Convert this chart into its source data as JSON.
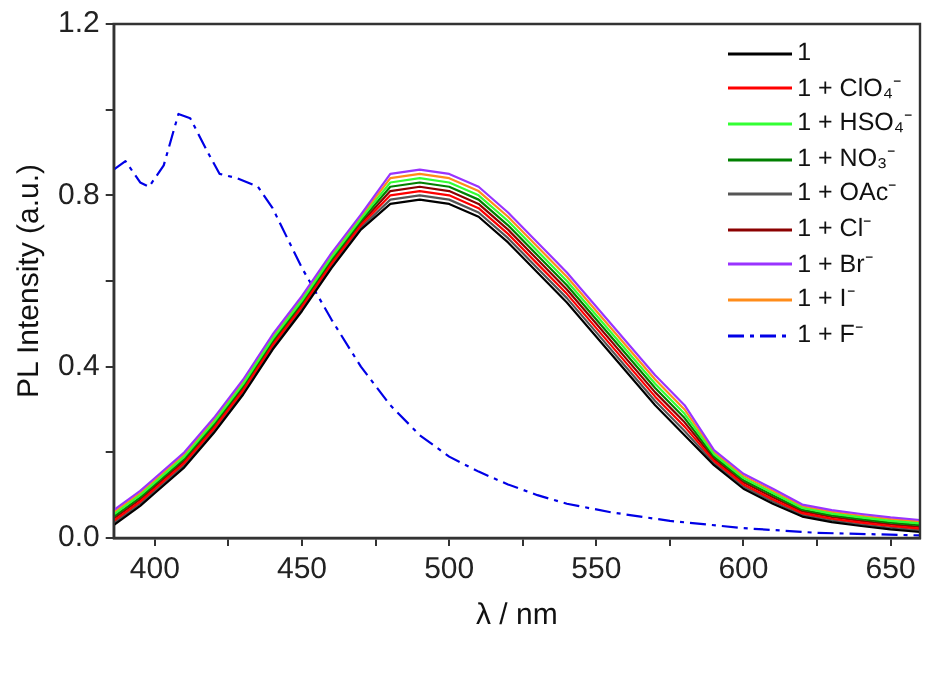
{
  "chart_data": {
    "type": "line",
    "xlabel": "λ / nm",
    "ylabel": "PL Intensity (a.u.)",
    "xlim": [
      386,
      660
    ],
    "xticks": [
      400,
      {
        "value": 425,
        "label": null
      },
      450,
      {
        "value": 475,
        "label": null
      },
      500,
      {
        "value": 525,
        "label": null
      },
      550,
      {
        "value": 575,
        "label": null
      },
      600,
      {
        "value": 625,
        "label": null
      },
      650
    ],
    "ylim": [
      0,
      1.2
    ],
    "yticks": [
      {
        "value": 0,
        "label": "0.0"
      },
      {
        "value": 0.2,
        "label": null
      },
      0.4,
      {
        "value": 0.6,
        "label": null
      },
      0.8,
      {
        "value": 1.0,
        "label": null
      },
      1.2
    ],
    "grid": false,
    "legend": "top right",
    "marker": "none",
    "x": [
      386,
      395,
      400,
      410,
      420,
      430,
      440,
      450,
      460,
      470,
      480,
      490,
      500,
      510,
      520,
      530,
      540,
      550,
      560,
      570,
      580,
      590,
      600,
      610,
      620,
      630,
      640,
      650,
      660
    ],
    "series": [
      {
        "name": "1",
        "color": "#000000",
        "values": [
          0.03,
          0.075,
          0.105,
          0.165,
          0.245,
          0.335,
          0.44,
          0.53,
          0.63,
          0.72,
          0.78,
          0.79,
          0.78,
          0.75,
          0.69,
          0.62,
          0.55,
          0.47,
          0.39,
          0.31,
          0.24,
          0.17,
          0.115,
          0.08,
          0.05,
          0.037,
          0.028,
          0.02,
          0.014
        ]
      },
      {
        "name": "1 + ClO₄⁻",
        "color": "#ff0000",
        "values": [
          0.04,
          0.085,
          0.115,
          0.175,
          0.255,
          0.345,
          0.45,
          0.54,
          0.64,
          0.73,
          0.8,
          0.81,
          0.8,
          0.77,
          0.71,
          0.64,
          0.57,
          0.49,
          0.41,
          0.33,
          0.26,
          0.18,
          0.125,
          0.09,
          0.058,
          0.045,
          0.036,
          0.028,
          0.022
        ]
      },
      {
        "name": "1 + HSO₄⁻",
        "color": "#33ff33",
        "values": [
          0.055,
          0.1,
          0.13,
          0.19,
          0.27,
          0.36,
          0.465,
          0.555,
          0.655,
          0.745,
          0.83,
          0.84,
          0.83,
          0.8,
          0.74,
          0.67,
          0.6,
          0.52,
          0.44,
          0.36,
          0.29,
          0.195,
          0.14,
          0.105,
          0.07,
          0.057,
          0.048,
          0.04,
          0.034
        ]
      },
      {
        "name": "1 + NO₃⁻",
        "color": "#008000",
        "values": [
          0.05,
          0.095,
          0.125,
          0.185,
          0.265,
          0.355,
          0.46,
          0.55,
          0.65,
          0.74,
          0.82,
          0.83,
          0.82,
          0.79,
          0.73,
          0.66,
          0.59,
          0.51,
          0.43,
          0.35,
          0.28,
          0.19,
          0.135,
          0.1,
          0.066,
          0.053,
          0.044,
          0.036,
          0.03
        ]
      },
      {
        "name": "1 + OAc⁻",
        "color": "#555555",
        "values": [
          0.035,
          0.08,
          0.11,
          0.17,
          0.25,
          0.34,
          0.445,
          0.535,
          0.635,
          0.725,
          0.79,
          0.8,
          0.79,
          0.76,
          0.7,
          0.63,
          0.56,
          0.48,
          0.4,
          0.32,
          0.25,
          0.175,
          0.12,
          0.085,
          0.054,
          0.041,
          0.032,
          0.024,
          0.018
        ]
      },
      {
        "name": "1 + Cl⁻",
        "color": "#8b0000",
        "values": [
          0.045,
          0.09,
          0.12,
          0.18,
          0.26,
          0.35,
          0.455,
          0.545,
          0.645,
          0.735,
          0.81,
          0.82,
          0.81,
          0.78,
          0.72,
          0.65,
          0.58,
          0.5,
          0.42,
          0.34,
          0.27,
          0.185,
          0.13,
          0.095,
          0.062,
          0.049,
          0.04,
          0.032,
          0.026
        ]
      },
      {
        "name": "1 + Br⁻",
        "color": "#9933ff",
        "values": [
          0.065,
          0.11,
          0.14,
          0.2,
          0.28,
          0.37,
          0.475,
          0.565,
          0.665,
          0.755,
          0.85,
          0.86,
          0.85,
          0.82,
          0.76,
          0.69,
          0.62,
          0.54,
          0.46,
          0.38,
          0.31,
          0.205,
          0.15,
          0.115,
          0.078,
          0.065,
          0.056,
          0.048,
          0.042
        ]
      },
      {
        "name": "1 + I⁻",
        "color": "#ff8c1a",
        "values": [
          0.06,
          0.105,
          0.135,
          0.195,
          0.275,
          0.365,
          0.47,
          0.56,
          0.66,
          0.75,
          0.84,
          0.85,
          0.84,
          0.81,
          0.75,
          0.68,
          0.61,
          0.53,
          0.45,
          0.37,
          0.3,
          0.2,
          0.145,
          0.11,
          0.074,
          0.061,
          0.052,
          0.044,
          0.038
        ]
      },
      {
        "name": "1 + F⁻",
        "color": "#0000e6",
        "line_style": "dashed",
        "x": [
          386,
          390,
          395,
          398,
          403,
          408,
          412,
          418,
          422,
          428,
          435,
          440,
          450,
          460,
          470,
          480,
          490,
          500,
          510,
          520,
          530,
          540,
          555,
          575,
          600,
          625,
          660
        ],
        "values": [
          0.86,
          0.88,
          0.83,
          0.82,
          0.87,
          0.99,
          0.98,
          0.9,
          0.85,
          0.84,
          0.82,
          0.77,
          0.63,
          0.51,
          0.4,
          0.31,
          0.24,
          0.19,
          0.155,
          0.125,
          0.1,
          0.08,
          0.06,
          0.04,
          0.023,
          0.012,
          0.006
        ]
      }
    ]
  }
}
